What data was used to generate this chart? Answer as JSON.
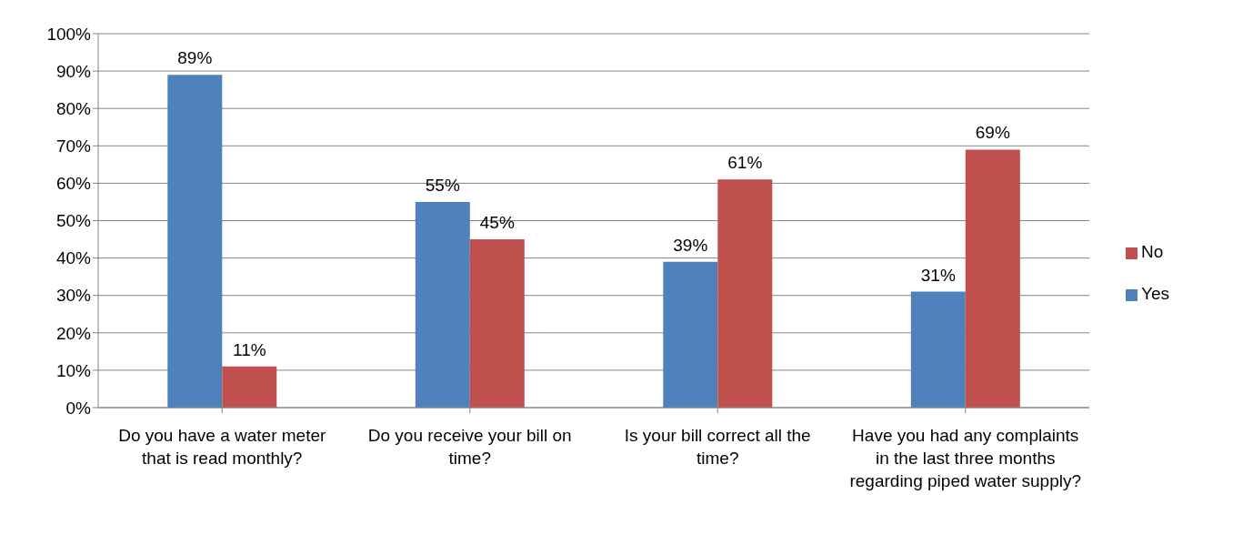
{
  "chart_data": {
    "type": "bar",
    "categories": [
      "Do you have a water meter that is read monthly?",
      "Do you receive your bill on time?",
      "Is your bill correct all the time?",
      "Have you had any complaints in the last three months regarding piped water supply?"
    ],
    "series": [
      {
        "name": "Yes",
        "color": "#4f81bd",
        "values": [
          89,
          55,
          39,
          31
        ],
        "value_labels": [
          "89%",
          "55%",
          "39%",
          "31%"
        ]
      },
      {
        "name": "No",
        "color": "#c0504d",
        "values": [
          11,
          45,
          61,
          69
        ],
        "value_labels": [
          "11%",
          "45%",
          "61%",
          "69%"
        ]
      }
    ],
    "ylim": [
      0,
      100
    ],
    "yticks": [
      {
        "value": 0,
        "label": "0%"
      },
      {
        "value": 10,
        "label": "10%"
      },
      {
        "value": 20,
        "label": "20%"
      },
      {
        "value": 30,
        "label": "30%"
      },
      {
        "value": 40,
        "label": "40%"
      },
      {
        "value": 50,
        "label": "50%"
      },
      {
        "value": 60,
        "label": "60%"
      },
      {
        "value": 70,
        "label": "70%"
      },
      {
        "value": 80,
        "label": "80%"
      },
      {
        "value": 90,
        "label": "90%"
      },
      {
        "value": 100,
        "label": "100%"
      }
    ],
    "grid": "y",
    "legend": "right"
  }
}
